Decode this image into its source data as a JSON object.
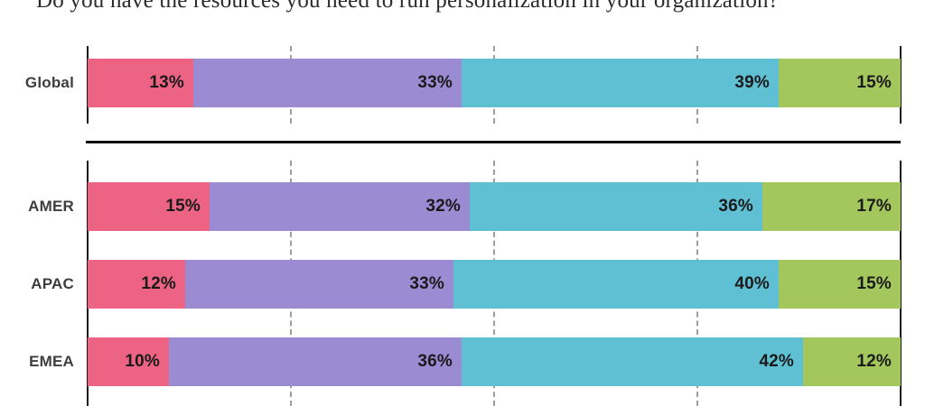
{
  "chart_data": {
    "type": "bar",
    "stacked": true,
    "orientation": "horizontal",
    "title": "Do you have the resources you need to run personalization in your organization?",
    "unit": "%",
    "xlim": [
      0,
      100
    ],
    "gridlines_percent": [
      25,
      50,
      75
    ],
    "grid_style": "dashed",
    "legend": "none",
    "segment_colors": [
      "#ED6383",
      "#9A8BD3",
      "#5FC0D4",
      "#A4C75D"
    ],
    "categories": [
      "Global",
      "AMER",
      "APAC",
      "EMEA"
    ],
    "groups": [
      {
        "rows": [
          {
            "label": "Global",
            "values": [
              13,
              33,
              39,
              15
            ]
          }
        ]
      },
      {
        "rows": [
          {
            "label": "AMER",
            "values": [
              15,
              32,
              36,
              17
            ]
          },
          {
            "label": "APAC",
            "values": [
              12,
              33,
              40,
              15
            ]
          },
          {
            "label": "EMEA",
            "values": [
              10,
              36,
              42,
              12
            ]
          }
        ]
      }
    ]
  }
}
